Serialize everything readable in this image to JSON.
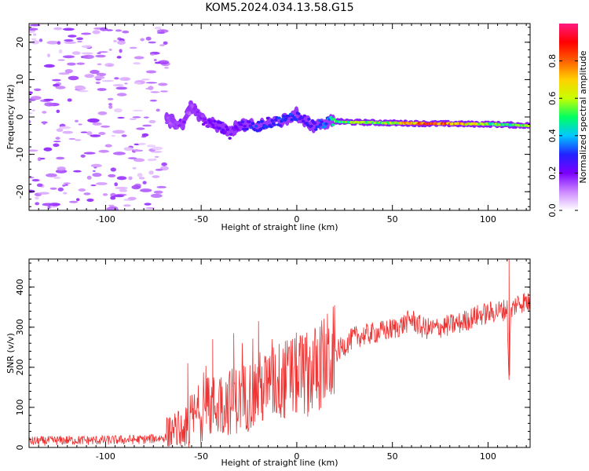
{
  "figure": {
    "title": "KOM5.2024.034.13.58.G15"
  },
  "chart_data": [
    {
      "type": "heatmap",
      "title": "KOM5.2024.034.13.58.G15",
      "xlabel": "Height of straight line (km)",
      "ylabel": "Frequency (Hz)",
      "xlim": [
        -140,
        122
      ],
      "ylim": [
        -25,
        25
      ],
      "x_ticks": [
        -100,
        -50,
        0,
        50,
        100
      ],
      "y_ticks": [
        -20,
        -10,
        0,
        10,
        20
      ],
      "x_tick_labels": [
        "-100",
        "-50",
        "0",
        "50",
        "100"
      ],
      "y_tick_labels": [
        "-20",
        "-10",
        "0",
        "10",
        "20"
      ],
      "colorbar": {
        "label": "Normalized spectral amplitude",
        "range": [
          0,
          1
        ],
        "ticks": [
          0.0,
          0.2,
          0.4,
          0.6,
          0.8
        ],
        "tick_labels": [
          "0.0",
          "0.2",
          "0.4",
          "0.6",
          "0.8"
        ],
        "colors": [
          "#ffffff",
          "#cc88ff",
          "#7a00ff",
          "#2222ff",
          "#00c8ff",
          "#00ff60",
          "#c8ff00",
          "#ffd000",
          "#ff6000",
          "#ff0000",
          "#ff1a80"
        ]
      },
      "features": {
        "noise_region_x": [
          -140,
          -68
        ],
        "signal_track": [
          {
            "x": -68,
            "y": -1.0,
            "amp": 0.15
          },
          {
            "x": -60,
            "y": -2.0,
            "amp": 0.18
          },
          {
            "x": -55,
            "y": 3.0,
            "amp": 0.15
          },
          {
            "x": -48,
            "y": -1.5,
            "amp": 0.2
          },
          {
            "x": -40,
            "y": -2.5,
            "amp": 0.22
          },
          {
            "x": -35,
            "y": -4.5,
            "amp": 0.2
          },
          {
            "x": -30,
            "y": -2.0,
            "amp": 0.25
          },
          {
            "x": -22,
            "y": -2.8,
            "amp": 0.3
          },
          {
            "x": -15,
            "y": -1.5,
            "amp": 0.3
          },
          {
            "x": -8,
            "y": -1.0,
            "amp": 0.3
          },
          {
            "x": 0,
            "y": 0.5,
            "amp": 0.32
          },
          {
            "x": 5,
            "y": -1.0,
            "amp": 0.3
          },
          {
            "x": 10,
            "y": -2.5,
            "amp": 0.3
          },
          {
            "x": 15,
            "y": -1.5,
            "amp": 0.35
          },
          {
            "x": 20,
            "y": -1.2,
            "amp": 0.5
          },
          {
            "x": 30,
            "y": -1.4,
            "amp": 0.6
          },
          {
            "x": 40,
            "y": -1.5,
            "amp": 0.55
          },
          {
            "x": 50,
            "y": -1.6,
            "amp": 0.65
          },
          {
            "x": 60,
            "y": -1.7,
            "amp": 0.75
          },
          {
            "x": 70,
            "y": -1.8,
            "amp": 0.9
          },
          {
            "x": 80,
            "y": -1.8,
            "amp": 0.85
          },
          {
            "x": 90,
            "y": -1.9,
            "amp": 0.7
          },
          {
            "x": 100,
            "y": -1.9,
            "amp": 0.6
          },
          {
            "x": 110,
            "y": -2.1,
            "amp": 0.5
          },
          {
            "x": 122,
            "y": -2.3,
            "amp": 0.6
          }
        ]
      }
    },
    {
      "type": "line",
      "xlabel": "Height of straight line (km)",
      "ylabel": "SNR (v/v)",
      "xlim": [
        -140,
        122
      ],
      "ylim": [
        0,
        470
      ],
      "x_ticks": [
        -100,
        -50,
        0,
        50,
        100
      ],
      "y_ticks": [
        0,
        100,
        200,
        300,
        400
      ],
      "x_tick_labels": [
        "-100",
        "-50",
        "0",
        "50",
        "100"
      ],
      "y_tick_labels": [
        "0",
        "100",
        "200",
        "300",
        "400"
      ],
      "line_color": "#ee3333",
      "series": [
        {
          "x": [
            -140,
            -120,
            -100,
            -80,
            -68,
            -60,
            -55,
            -50,
            -45,
            -40,
            -35,
            -30,
            -25,
            -20,
            -15,
            -10,
            -5,
            0,
            5,
            10,
            15,
            20,
            25,
            30,
            35,
            40,
            45,
            50,
            55,
            60,
            65,
            70,
            75,
            80,
            85,
            90,
            95,
            100,
            105,
            110,
            111,
            112,
            115,
            120,
            122
          ],
          "y": [
            15,
            18,
            18,
            20,
            25,
            40,
            70,
            90,
            100,
            110,
            115,
            120,
            130,
            145,
            150,
            165,
            170,
            180,
            185,
            195,
            215,
            235,
            255,
            275,
            280,
            285,
            290,
            295,
            305,
            320,
            300,
            295,
            300,
            305,
            310,
            320,
            330,
            335,
            340,
            345,
            160,
            340,
            360,
            365,
            355
          ]
        }
      ],
      "spikes": [
        {
          "x": -57,
          "y": 210
        },
        {
          "x": -44,
          "y": 270
        },
        {
          "x": -33,
          "y": 285
        },
        {
          "x": -20,
          "y": 315
        },
        {
          "x": -13,
          "y": 270
        },
        {
          "x": 111,
          "y": 470
        }
      ]
    }
  ]
}
